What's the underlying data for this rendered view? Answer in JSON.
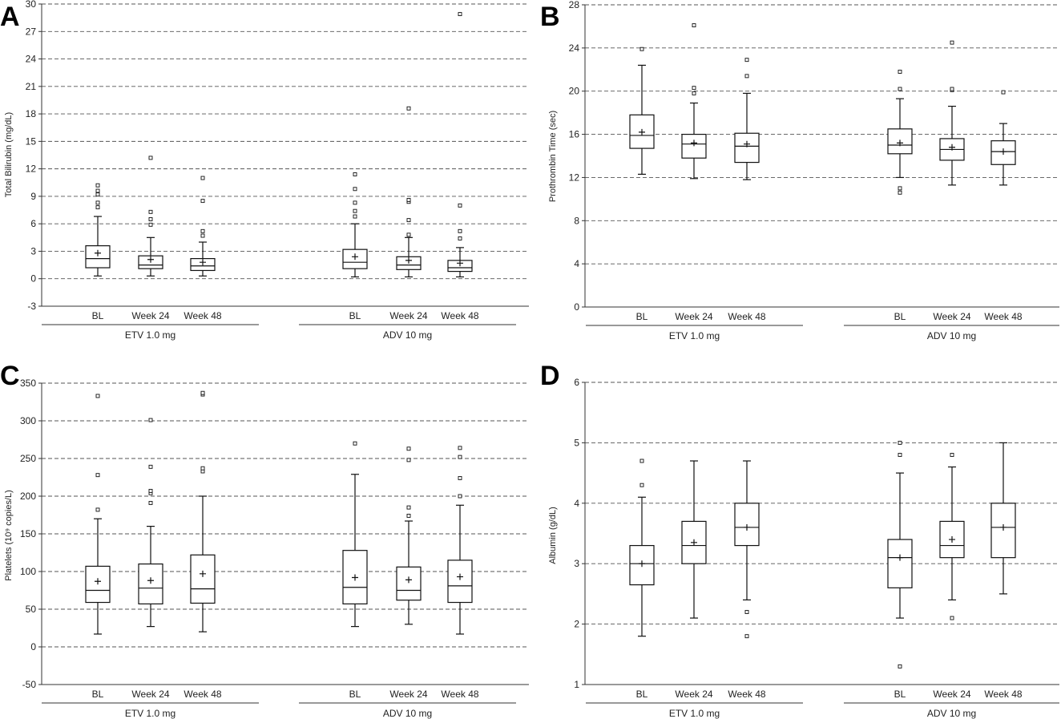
{
  "chart_data": [
    {
      "type": "box",
      "panel_label": "A",
      "ylabel": "Total Bilirubin (mg/dL)",
      "ylim": [
        -3,
        30
      ],
      "yticks": [
        -3,
        0,
        3,
        6,
        9,
        12,
        15,
        18,
        21,
        24,
        27,
        30
      ],
      "grid": true,
      "groups": [
        {
          "name": "ETV 1.0 mg",
          "categories": [
            "BL",
            "Week 24",
            "Week 48"
          ]
        },
        {
          "name": "ADV 10 mg",
          "categories": [
            "BL",
            "Week 24",
            "Week 48"
          ]
        }
      ],
      "boxes": [
        {
          "group": 0,
          "category": "BL",
          "min": 0.3,
          "q1": 1.2,
          "median": 2.2,
          "q3": 3.6,
          "max": 6.8,
          "mean": 2.8,
          "outliers": [
            7.8,
            8.3,
            9.2,
            9.6,
            10.2
          ]
        },
        {
          "group": 0,
          "category": "Week 24",
          "min": 0.3,
          "q1": 1.1,
          "median": 1.5,
          "q3": 2.5,
          "max": 4.5,
          "mean": 2.1,
          "outliers": [
            5.9,
            6.5,
            7.3,
            13.2
          ]
        },
        {
          "group": 0,
          "category": "Week 48",
          "min": 0.3,
          "q1": 0.9,
          "median": 1.4,
          "q3": 2.2,
          "max": 4.0,
          "mean": 1.8,
          "outliers": [
            4.7,
            5.2,
            8.5,
            11.0
          ]
        },
        {
          "group": 1,
          "category": "BL",
          "min": 0.2,
          "q1": 1.1,
          "median": 1.8,
          "q3": 3.2,
          "max": 6.0,
          "mean": 2.4,
          "outliers": [
            6.8,
            7.4,
            8.3,
            9.8,
            11.4
          ]
        },
        {
          "group": 1,
          "category": "Week 24",
          "min": 0.2,
          "q1": 1.0,
          "median": 1.5,
          "q3": 2.4,
          "max": 4.5,
          "mean": 2.0,
          "outliers": [
            4.8,
            6.4,
            8.4,
            8.6,
            18.6
          ]
        },
        {
          "group": 1,
          "category": "Week 48",
          "min": 0.2,
          "q1": 0.8,
          "median": 1.2,
          "q3": 2.0,
          "max": 3.4,
          "mean": 1.7,
          "outliers": [
            4.4,
            5.2,
            8.0,
            28.9
          ]
        }
      ]
    },
    {
      "type": "box",
      "panel_label": "B",
      "ylabel": "Prothrombin Time (sec)",
      "ylim": [
        0,
        28
      ],
      "yticks": [
        0,
        4,
        8,
        12,
        16,
        20,
        24,
        28
      ],
      "grid": true,
      "groups": [
        {
          "name": "ETV 1.0 mg",
          "categories": [
            "BL",
            "Week 24",
            "Week 48"
          ]
        },
        {
          "name": "ADV 10 mg",
          "categories": [
            "BL",
            "Week 24",
            "Week 48"
          ]
        }
      ],
      "boxes": [
        {
          "group": 0,
          "category": "BL",
          "min": 12.3,
          "q1": 14.7,
          "median": 15.9,
          "q3": 17.8,
          "max": 22.4,
          "mean": 16.2,
          "outliers": [
            23.9
          ]
        },
        {
          "group": 0,
          "category": "Week 24",
          "min": 11.9,
          "q1": 13.8,
          "median": 15.1,
          "q3": 16.0,
          "max": 18.9,
          "mean": 15.2,
          "outliers": [
            19.8,
            20.3,
            26.1
          ]
        },
        {
          "group": 0,
          "category": "Week 48",
          "min": 11.8,
          "q1": 13.4,
          "median": 14.9,
          "q3": 16.1,
          "max": 19.8,
          "mean": 15.1,
          "outliers": [
            21.4,
            22.9
          ]
        },
        {
          "group": 1,
          "category": "BL",
          "min": 12.0,
          "q1": 14.2,
          "median": 15.0,
          "q3": 16.5,
          "max": 19.3,
          "mean": 15.2,
          "outliers": [
            10.6,
            11.0,
            20.2,
            21.8
          ]
        },
        {
          "group": 1,
          "category": "Week 24",
          "min": 11.3,
          "q1": 13.6,
          "median": 14.6,
          "q3": 15.6,
          "max": 18.6,
          "mean": 14.8,
          "outliers": [
            20.1,
            20.2,
            24.5
          ]
        },
        {
          "group": 1,
          "category": "Week 48",
          "min": 11.3,
          "q1": 13.2,
          "median": 14.4,
          "q3": 15.4,
          "max": 17.0,
          "mean": 14.4,
          "outliers": [
            19.9
          ]
        }
      ]
    },
    {
      "type": "box",
      "panel_label": "C",
      "ylabel": "Platelets (10⁹ copies/L)",
      "ylim": [
        -50,
        350
      ],
      "yticks": [
        -50,
        0,
        50,
        100,
        150,
        200,
        250,
        300,
        350
      ],
      "grid": true,
      "groups": [
        {
          "name": "ETV 1.0 mg",
          "categories": [
            "BL",
            "Week 24",
            "Week 48"
          ]
        },
        {
          "name": "ADV 10 mg",
          "categories": [
            "BL",
            "Week 24",
            "Week 48"
          ]
        }
      ],
      "boxes": [
        {
          "group": 0,
          "category": "BL",
          "min": 17,
          "q1": 59,
          "median": 75,
          "q3": 107,
          "max": 170,
          "mean": 87,
          "outliers": [
            182,
            228,
            333
          ]
        },
        {
          "group": 0,
          "category": "Week 24",
          "min": 27,
          "q1": 57,
          "median": 78,
          "q3": 110,
          "max": 160,
          "mean": 88,
          "outliers": [
            191,
            204,
            207,
            239,
            301
          ]
        },
        {
          "group": 0,
          "category": "Week 48",
          "min": 20,
          "q1": 58,
          "median": 77,
          "q3": 122,
          "max": 200,
          "mean": 97,
          "outliers": [
            233,
            237,
            335,
            337
          ]
        },
        {
          "group": 1,
          "category": "BL",
          "min": 27,
          "q1": 57,
          "median": 79,
          "q3": 128,
          "max": 229,
          "mean": 92,
          "outliers": [
            270
          ]
        },
        {
          "group": 1,
          "category": "Week 24",
          "min": 30,
          "q1": 62,
          "median": 75,
          "q3": 106,
          "max": 167,
          "mean": 89,
          "outliers": [
            174,
            185,
            248,
            263
          ]
        },
        {
          "group": 1,
          "category": "Week 48",
          "min": 17,
          "q1": 59,
          "median": 81,
          "q3": 115,
          "max": 188,
          "mean": 93,
          "outliers": [
            200,
            224,
            252,
            264
          ]
        }
      ]
    },
    {
      "type": "box",
      "panel_label": "D",
      "ylabel": "Albumin (g/dL)",
      "ylim": [
        1,
        6
      ],
      "yticks": [
        1,
        2,
        3,
        4,
        5,
        6
      ],
      "grid": true,
      "groups": [
        {
          "name": "ETV 1.0 mg",
          "categories": [
            "BL",
            "Week 24",
            "Week 48"
          ]
        },
        {
          "name": "ADV 10 mg",
          "categories": [
            "BL",
            "Week 24",
            "Week 48"
          ]
        }
      ],
      "boxes": [
        {
          "group": 0,
          "category": "BL",
          "min": 1.8,
          "q1": 2.65,
          "median": 3.0,
          "q3": 3.3,
          "max": 4.1,
          "mean": 3.0,
          "outliers": [
            4.3,
            4.7
          ]
        },
        {
          "group": 0,
          "category": "Week 24",
          "min": 2.1,
          "q1": 3.0,
          "median": 3.3,
          "q3": 3.7,
          "max": 4.7,
          "mean": 3.35,
          "outliers": []
        },
        {
          "group": 0,
          "category": "Week 48",
          "min": 2.4,
          "q1": 3.3,
          "median": 3.6,
          "q3": 4.0,
          "max": 4.7,
          "mean": 3.6,
          "outliers": [
            1.8,
            2.2
          ]
        },
        {
          "group": 1,
          "category": "BL",
          "min": 2.1,
          "q1": 2.6,
          "median": 3.1,
          "q3": 3.4,
          "max": 4.5,
          "mean": 3.1,
          "outliers": [
            1.3,
            4.8,
            5.0
          ]
        },
        {
          "group": 1,
          "category": "Week 24",
          "min": 2.4,
          "q1": 3.1,
          "median": 3.3,
          "q3": 3.7,
          "max": 4.6,
          "mean": 3.4,
          "outliers": [
            2.1,
            4.8
          ]
        },
        {
          "group": 1,
          "category": "Week 48",
          "min": 2.5,
          "q1": 3.1,
          "median": 3.6,
          "q3": 4.0,
          "max": 5.0,
          "mean": 3.6,
          "outliers": []
        }
      ]
    }
  ]
}
